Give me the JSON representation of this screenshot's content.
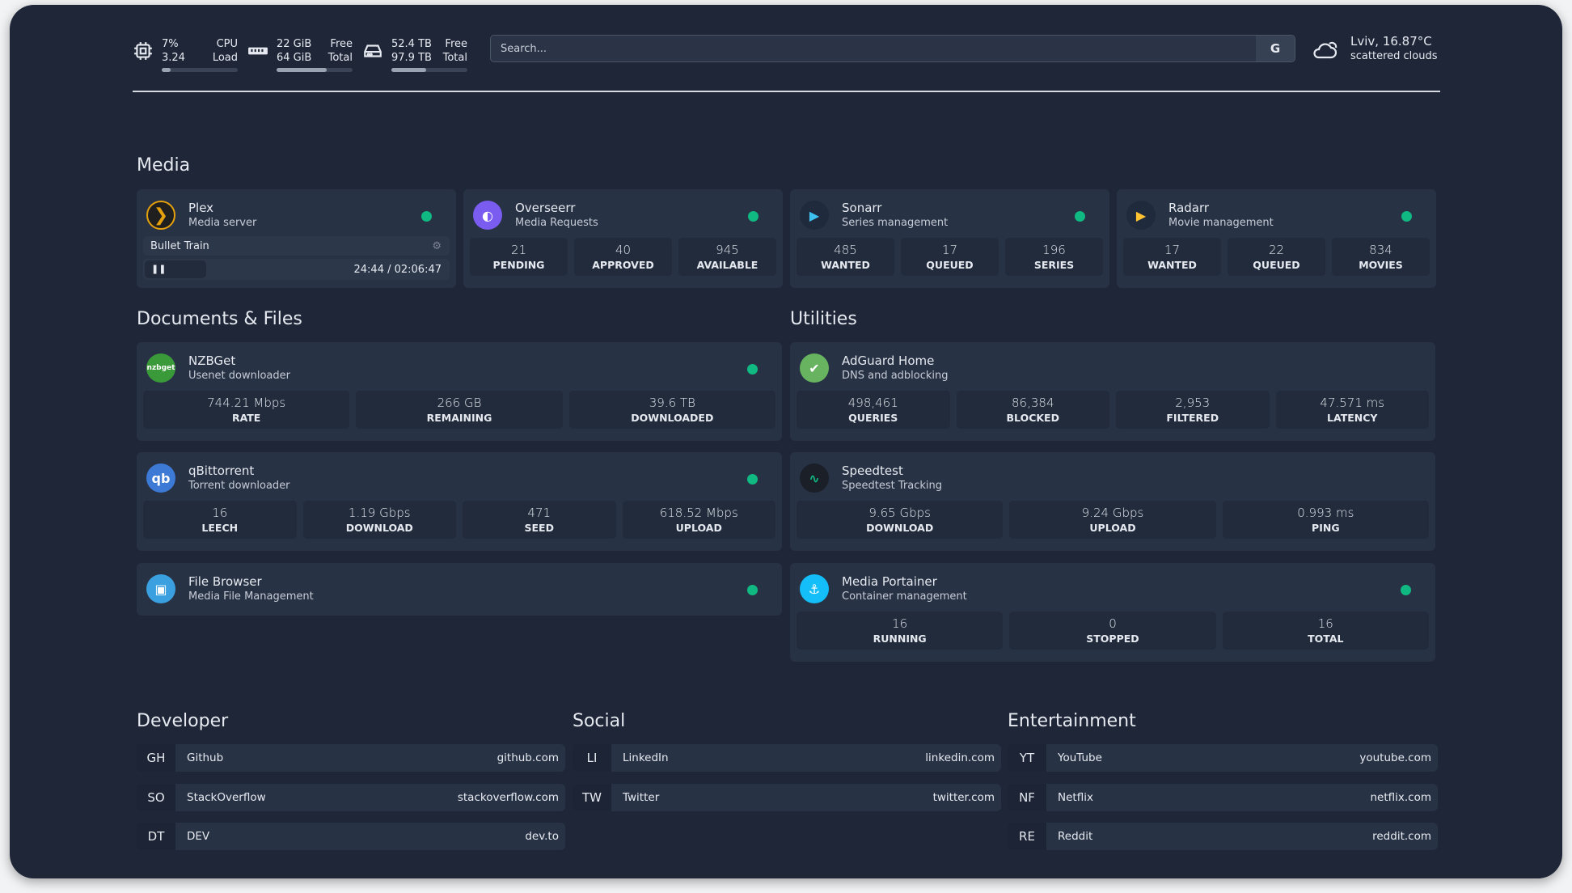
{
  "resources": {
    "cpu": {
      "icon": "cpu-icon",
      "top_value": "7%",
      "top_label": "CPU",
      "bottom_value": "3.24",
      "bottom_label": "Load",
      "usage_percent": 7
    },
    "memory": {
      "icon": "memory-icon",
      "top_value": "22 GiB",
      "top_label": "Free",
      "bottom_value": "64 GiB",
      "bottom_label": "Total",
      "usage_percent": 66
    },
    "disk": {
      "icon": "disk-icon",
      "top_value": "52.4 TB",
      "top_label": "Free",
      "bottom_value": "97.9 TB",
      "bottom_label": "Total",
      "usage_percent": 46
    }
  },
  "search": {
    "placeholder": "Search...",
    "provider_label": "G"
  },
  "weather": {
    "icon": "cloud-icon",
    "location_temp": "Lviv, 16.87°C",
    "condition": "scattered clouds"
  },
  "colors": {
    "background": "#1e2638",
    "card": "#283245",
    "status_online": "#10b981"
  },
  "groups": {
    "media": "Media",
    "documents": "Documents & Files",
    "utilities": "Utilities",
    "developer": "Developer",
    "social": "Social",
    "entertainment": "Entertainment"
  },
  "services": {
    "plex": {
      "name": "Plex",
      "description": "Media server",
      "now_playing": "Bullet Train",
      "progress": "24:44 / 02:06:47",
      "state": "paused"
    },
    "overseerr": {
      "name": "Overseerr",
      "description": "Media Requests",
      "stats": [
        {
          "value": "21",
          "label": "PENDING"
        },
        {
          "value": "40",
          "label": "APPROVED"
        },
        {
          "value": "945",
          "label": "AVAILABLE"
        }
      ]
    },
    "sonarr": {
      "name": "Sonarr",
      "description": "Series management",
      "stats": [
        {
          "value": "485",
          "label": "WANTED"
        },
        {
          "value": "17",
          "label": "QUEUED"
        },
        {
          "value": "196",
          "label": "SERIES"
        }
      ]
    },
    "radarr": {
      "name": "Radarr",
      "description": "Movie management",
      "stats": [
        {
          "value": "17",
          "label": "WANTED"
        },
        {
          "value": "22",
          "label": "QUEUED"
        },
        {
          "value": "834",
          "label": "MOVIES"
        }
      ]
    },
    "nzbget": {
      "name": "NZBGet",
      "description": "Usenet downloader",
      "logo_text": "nzbget",
      "stats": [
        {
          "value": "744.21 Mbps",
          "label": "RATE"
        },
        {
          "value": "266 GB",
          "label": "REMAINING"
        },
        {
          "value": "39.6 TB",
          "label": "DOWNLOADED"
        }
      ]
    },
    "qbittorrent": {
      "name": "qBittorrent",
      "description": "Torrent downloader",
      "logo_text": "qb",
      "stats": [
        {
          "value": "16",
          "label": "LEECH"
        },
        {
          "value": "1.19 Gbps",
          "label": "DOWNLOAD"
        },
        {
          "value": "471",
          "label": "SEED"
        },
        {
          "value": "618.52 Mbps",
          "label": "UPLOAD"
        }
      ]
    },
    "filebrowser": {
      "name": "File Browser",
      "description": "Media File Management"
    },
    "adguard": {
      "name": "AdGuard Home",
      "description": "DNS and adblocking",
      "stats": [
        {
          "value": "498,461",
          "label": "QUERIES"
        },
        {
          "value": "86,384",
          "label": "BLOCKED"
        },
        {
          "value": "2,953",
          "label": "FILTERED"
        },
        {
          "value": "47.571 ms",
          "label": "LATENCY"
        }
      ]
    },
    "speedtest": {
      "name": "Speedtest",
      "description": "Speedtest Tracking",
      "stats": [
        {
          "value": "9.65 Gbps",
          "label": "DOWNLOAD"
        },
        {
          "value": "9.24 Gbps",
          "label": "UPLOAD"
        },
        {
          "value": "0.993 ms",
          "label": "PING"
        }
      ]
    },
    "portainer": {
      "name": "Media Portainer",
      "description": "Container management",
      "stats": [
        {
          "value": "16",
          "label": "RUNNING"
        },
        {
          "value": "0",
          "label": "STOPPED"
        },
        {
          "value": "16",
          "label": "TOTAL"
        }
      ]
    }
  },
  "bookmarks": {
    "developer": [
      {
        "abbr": "GH",
        "name": "Github",
        "url": "github.com"
      },
      {
        "abbr": "SO",
        "name": "StackOverflow",
        "url": "stackoverflow.com"
      },
      {
        "abbr": "DT",
        "name": "DEV",
        "url": "dev.to"
      }
    ],
    "social": [
      {
        "abbr": "LI",
        "name": "LinkedIn",
        "url": "linkedin.com"
      },
      {
        "abbr": "TW",
        "name": "Twitter",
        "url": "twitter.com"
      }
    ],
    "entertainment": [
      {
        "abbr": "YT",
        "name": "YouTube",
        "url": "youtube.com"
      },
      {
        "abbr": "NF",
        "name": "Netflix",
        "url": "netflix.com"
      },
      {
        "abbr": "RE",
        "name": "Reddit",
        "url": "reddit.com"
      }
    ]
  }
}
